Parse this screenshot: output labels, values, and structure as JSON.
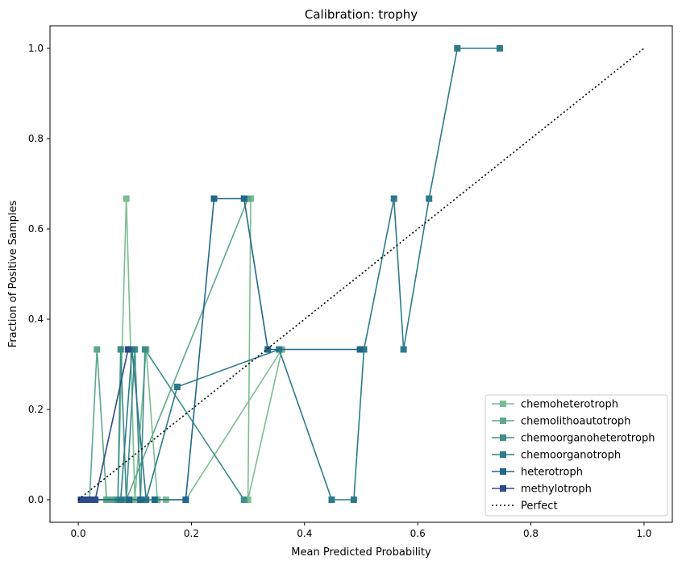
{
  "chart_data": {
    "type": "line",
    "title": "Calibration: trophy",
    "xlabel": "Mean Predicted Probability",
    "ylabel": "Fraction of Positive Samples",
    "xlim": [
      -0.05,
      1.05
    ],
    "ylim": [
      -0.05,
      1.05
    ],
    "xticks": [
      "0.0",
      "0.2",
      "0.4",
      "0.6",
      "0.8",
      "1.0"
    ],
    "yticks": [
      "0.0",
      "0.2",
      "0.4",
      "0.6",
      "0.8",
      "1.0"
    ],
    "grid": false,
    "legend_position": "bottom-right",
    "marker": "square",
    "series": [
      {
        "name": "chemoheterotroph",
        "color": "#7dbc93",
        "points": [
          [
            0.005,
            0.0
          ],
          [
            0.01,
            0.0
          ],
          [
            0.02,
            0.0
          ],
          [
            0.05,
            0.0
          ],
          [
            0.07,
            0.0
          ],
          [
            0.085,
            0.667
          ],
          [
            0.1,
            0.0
          ],
          [
            0.12,
            0.333
          ],
          [
            0.14,
            0.0
          ],
          [
            0.155,
            0.0
          ],
          [
            0.19,
            0.0
          ],
          [
            0.36,
            0.333
          ],
          [
            0.3,
            0.0
          ],
          [
            0.305,
            0.667
          ]
        ]
      },
      {
        "name": "chemolithoautotroph",
        "color": "#5ea98a",
        "points": [
          [
            0.005,
            0.0
          ],
          [
            0.01,
            0.0
          ],
          [
            0.02,
            0.0
          ],
          [
            0.033,
            0.333
          ],
          [
            0.05,
            0.0
          ],
          [
            0.06,
            0.0
          ],
          [
            0.085,
            0.0
          ],
          [
            0.3,
            0.667
          ]
        ]
      },
      {
        "name": "chemoorganoheterotroph",
        "color": "#3d8f87",
        "points": [
          [
            0.005,
            0.0
          ],
          [
            0.01,
            0.0
          ],
          [
            0.02,
            0.0
          ],
          [
            0.07,
            0.0
          ],
          [
            0.075,
            0.333
          ],
          [
            0.085,
            0.0
          ],
          [
            0.1,
            0.333
          ],
          [
            0.11,
            0.0
          ],
          [
            0.118,
            0.333
          ],
          [
            0.293,
            0.0
          ]
        ]
      },
      {
        "name": "chemoorganotroph",
        "color": "#2d7a8a",
        "points": [
          [
            0.005,
            0.0
          ],
          [
            0.01,
            0.0
          ],
          [
            0.03,
            0.0
          ],
          [
            0.075,
            0.0
          ],
          [
            0.095,
            0.333
          ],
          [
            0.12,
            0.0
          ],
          [
            0.175,
            0.25
          ],
          [
            0.355,
            0.333
          ],
          [
            0.448,
            0.0
          ],
          [
            0.487,
            0.0
          ],
          [
            0.505,
            0.333
          ],
          [
            0.558,
            0.667
          ],
          [
            0.575,
            0.333
          ],
          [
            0.62,
            0.667
          ],
          [
            0.67,
            1.0
          ],
          [
            0.745,
            1.0
          ]
        ]
      },
      {
        "name": "heterotroph",
        "color": "#216789",
        "points": [
          [
            0.005,
            0.0
          ],
          [
            0.01,
            0.0
          ],
          [
            0.02,
            0.0
          ],
          [
            0.09,
            0.0
          ],
          [
            0.11,
            0.0
          ],
          [
            0.135,
            0.0
          ],
          [
            0.19,
            0.0
          ],
          [
            0.24,
            0.667
          ],
          [
            0.293,
            0.667
          ],
          [
            0.335,
            0.333
          ],
          [
            0.498,
            0.333
          ]
        ]
      },
      {
        "name": "methylotroph",
        "color": "#2b4a87",
        "points": [
          [
            0.005,
            0.0
          ],
          [
            0.01,
            0.0
          ],
          [
            0.015,
            0.0
          ],
          [
            0.02,
            0.0
          ],
          [
            0.03,
            0.0
          ],
          [
            0.088,
            0.333
          ]
        ]
      }
    ],
    "reference_line": {
      "name": "Perfect",
      "color": "#000000",
      "style": "dotted",
      "points": [
        [
          0.0,
          0.0
        ],
        [
          1.0,
          1.0
        ]
      ]
    }
  }
}
